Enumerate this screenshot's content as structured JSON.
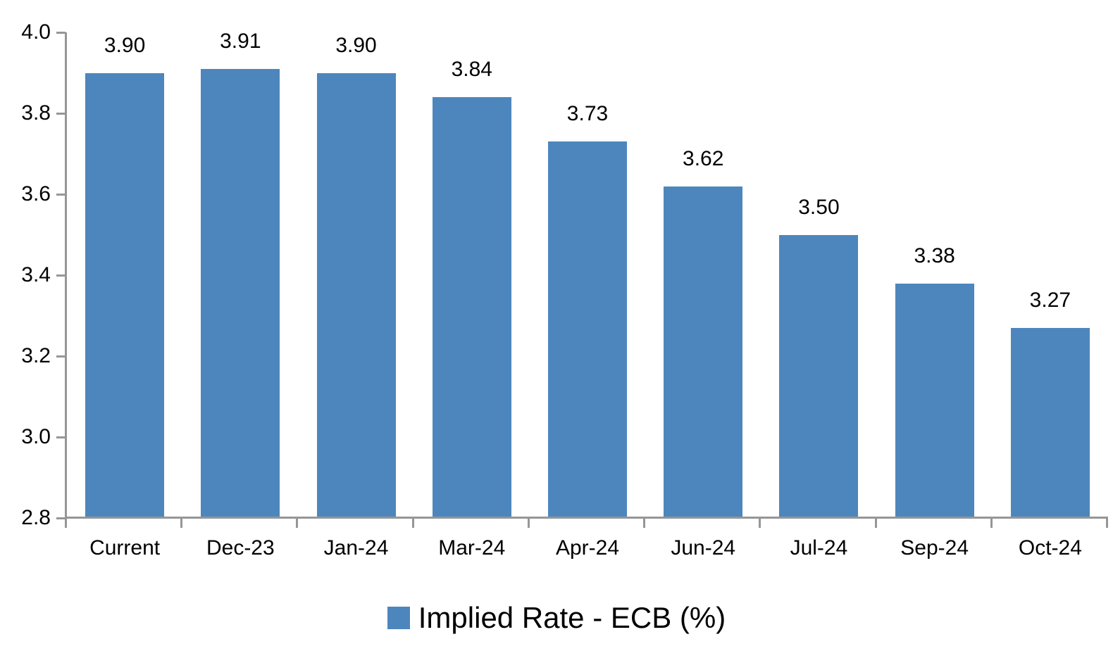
{
  "chart_data": {
    "type": "bar",
    "title": "",
    "categories": [
      "Current",
      "Dec-23",
      "Jan-24",
      "Mar-24",
      "Apr-24",
      "Jun-24",
      "Jul-24",
      "Sep-24",
      "Oct-24"
    ],
    "series": [
      {
        "name": "Implied Rate - ECB (%)",
        "values": [
          3.9,
          3.91,
          3.9,
          3.84,
          3.73,
          3.62,
          3.5,
          3.38,
          3.27
        ]
      }
    ],
    "data_labels": [
      "3.90",
      "3.91",
      "3.90",
      "3.84",
      "3.73",
      "3.62",
      "3.50",
      "3.38",
      "3.27"
    ],
    "xlabel": "",
    "ylabel": "",
    "ylim": [
      2.8,
      4.0
    ],
    "ytick_step": 0.2,
    "ytick_labels": [
      "4.0",
      "3.8",
      "3.6",
      "3.4",
      "3.2",
      "3.0",
      "2.8"
    ],
    "grid": false,
    "legend_position": "bottom",
    "bar_color": "#4D86BC",
    "axis_color": "#969696",
    "text_color": "#000000"
  },
  "legend": {
    "label": "Implied Rate - ECB (%)"
  }
}
